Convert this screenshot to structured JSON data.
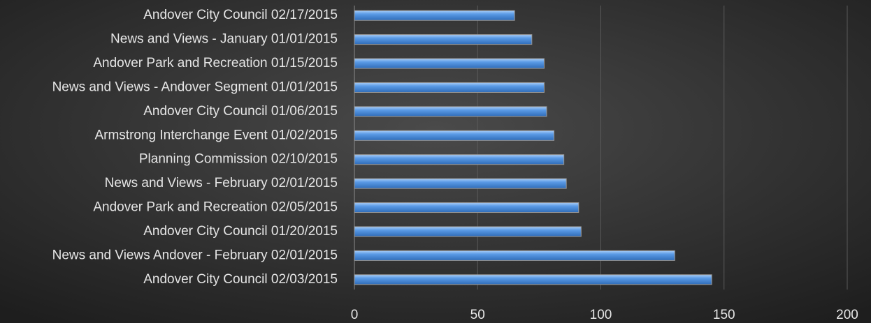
{
  "chart_data": {
    "type": "barh",
    "categories": [
      "Andover City Council 02/17/2015",
      "News and Views - January 01/01/2015",
      "Andover Park and Recreation 01/15/2015",
      "News and Views - Andover Segment 01/01/2015",
      "Andover City Council 01/06/2015",
      "Armstrong Interchange Event 01/02/2015",
      "Planning Commission 02/10/2015",
      "News and Views - February 02/01/2015",
      "Andover Park and Recreation 02/05/2015",
      "Andover City Council 01/20/2015",
      "News and Views Andover - February 02/01/2015",
      "Andover City Council 02/03/2015"
    ],
    "values": [
      65,
      72,
      77,
      77,
      78,
      81,
      85,
      86,
      91,
      92,
      130,
      145
    ],
    "color": "#5b9be6",
    "xlim": [
      0,
      200
    ],
    "xticks": [
      0,
      50,
      100,
      150,
      200
    ],
    "grid": true
  }
}
